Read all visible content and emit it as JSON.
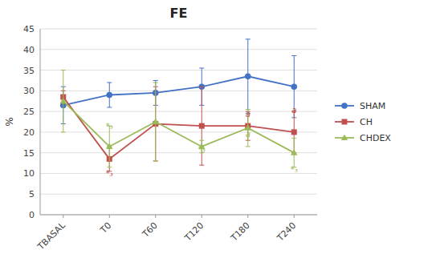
{
  "chart_data": {
    "type": "line",
    "title": "FE",
    "y_label": "%",
    "categories": [
      "TBASAL",
      "T0",
      "T60",
      "T120",
      "T180",
      "T240"
    ],
    "series": [
      {
        "name": "SHAM",
        "color": "#4472C4",
        "marker": "circle",
        "values": [
          26.5,
          29.0,
          29.5,
          31.0,
          33.5,
          31.0
        ],
        "errors": [
          4.5,
          3.0,
          3.0,
          4.5,
          9.0,
          7.5
        ]
      },
      {
        "name": "CH",
        "color": "#C0504D",
        "marker": "square",
        "values": [
          28.5,
          13.5,
          22.0,
          21.5,
          21.5,
          20.0
        ],
        "errors": [
          1.5,
          3.0,
          9.0,
          9.5,
          3.5,
          5.0
        ]
      },
      {
        "name": "CHDEX",
        "color": "#9BBB59",
        "marker": "triangle",
        "values": [
          27.5,
          16.5,
          22.5,
          16.5,
          21.0,
          15.0
        ],
        "errors": [
          7.5,
          5.0,
          9.5,
          1.5,
          4.5,
          3.5
        ]
      }
    ],
    "annotations": [
      {
        "text": "*₃",
        "category": "T0",
        "y": 10.0,
        "color": "#C0504D"
      },
      {
        "text": "*₃",
        "category": "T0",
        "y": 21.5,
        "color": "#9BBB59"
      },
      {
        "text": "*₃",
        "category": "T120",
        "y": 16.0,
        "color": "#9BBB59"
      },
      {
        "text": "a",
        "category": "T180",
        "y": 24.5,
        "color": "#C0504D"
      },
      {
        "text": "a",
        "category": "T180",
        "y": 19.5,
        "color": "#9BBB59"
      },
      {
        "text": "a",
        "category": "T240",
        "y": 25.5,
        "color": "#C0504D"
      },
      {
        "text": "*₃",
        "category": "T240",
        "y": 11.0,
        "color": "#9BBB59"
      }
    ],
    "ylim": [
      0,
      45
    ],
    "yticks": [
      0,
      5,
      10,
      15,
      20,
      25,
      30,
      35,
      40,
      45
    ],
    "grid": true,
    "legend": "right"
  }
}
